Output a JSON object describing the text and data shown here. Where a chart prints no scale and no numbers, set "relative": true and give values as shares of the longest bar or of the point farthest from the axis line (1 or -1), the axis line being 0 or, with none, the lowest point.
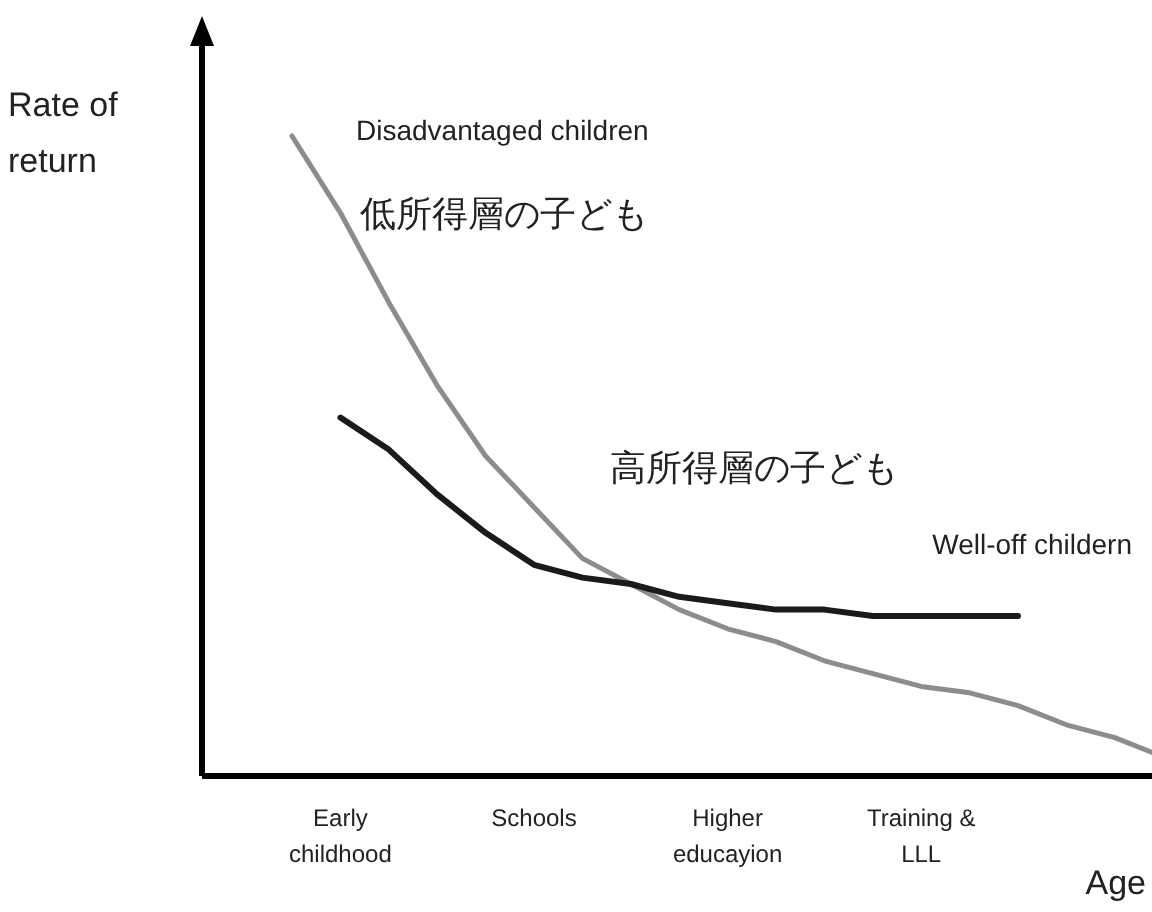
{
  "chart_data": {
    "type": "line",
    "relative": true,
    "ylabel": "Rate of return",
    "xlabel": "Age",
    "tick_labels": "x",
    "marker": "none",
    "line_style": "solid",
    "categories": [
      null,
      "Early childhood",
      null,
      null,
      null,
      "Schools",
      null,
      null,
      null,
      "Higher educayion",
      null,
      null,
      null,
      "Training & LLL",
      null,
      null,
      null,
      null,
      null
    ],
    "series": [
      {
        "name": "Disadvantaged children",
        "color": "#8c8c8c",
        "values": [
          1,
          0.88,
          0.74,
          0.61,
          0.5,
          0.42,
          0.34,
          0.3,
          0.26,
          0.23,
          0.21,
          0.18,
          0.16,
          0.14,
          0.13,
          0.11,
          0.08,
          0.06,
          0.03
        ]
      },
      {
        "name": "Well-off childern",
        "color": "#1a1a1a",
        "values": [
          null,
          0.56,
          0.51,
          0.44,
          0.38,
          0.33,
          0.31,
          0.3,
          0.28,
          0.27,
          0.26,
          0.26,
          0.25,
          0.25,
          0.25,
          0.25,
          null,
          null,
          null
        ]
      }
    ],
    "annotations": [
      "低所得層の子ども",
      "高所得層の子ども"
    ]
  }
}
